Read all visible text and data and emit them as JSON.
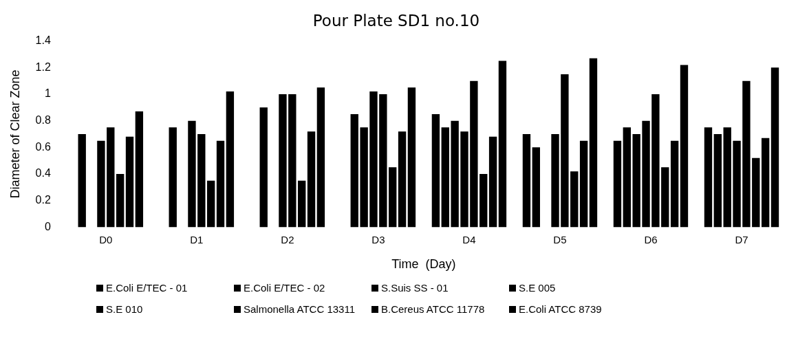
{
  "chart_data": {
    "type": "bar",
    "title": "Pour Plate SD1 no.10",
    "xlabel": "Time  (Day)",
    "ylabel": "Diameter of Clear Zone",
    "categories": [
      "D0",
      "D1",
      "D2",
      "D3",
      "D4",
      "D5",
      "D6",
      "D7"
    ],
    "series": [
      {
        "name": "E.Coli E/TEC - 01",
        "color": "#000000",
        "values": [
          null,
          null,
          null,
          null,
          0.85,
          0.7,
          0.65,
          0.75
        ]
      },
      {
        "name": "E.Coli E/TEC - 02",
        "color": "#000000",
        "values": [
          0.7,
          0.75,
          0.9,
          0.85,
          0.75,
          0.6,
          0.75,
          0.7
        ]
      },
      {
        "name": "S.Suis SS - 01",
        "color": "#000000",
        "values": [
          null,
          null,
          null,
          0.75,
          0.8,
          null,
          0.7,
          0.75
        ]
      },
      {
        "name": "S.E 005",
        "color": "#000000",
        "values": [
          0.65,
          0.8,
          1.0,
          1.02,
          0.72,
          0.7,
          0.8,
          0.65
        ]
      },
      {
        "name": "S.E 010",
        "color": "#000000",
        "values": [
          0.75,
          0.7,
          1.0,
          1.0,
          1.1,
          1.15,
          1.0,
          1.1
        ]
      },
      {
        "name": "Salmonella ATCC 13311",
        "color": "#000000",
        "values": [
          0.4,
          0.35,
          0.35,
          0.45,
          0.4,
          0.42,
          0.45,
          0.52
        ]
      },
      {
        "name": "B.Cereus ATCC 11778",
        "color": "#000000",
        "values": [
          0.68,
          0.65,
          0.72,
          0.72,
          0.68,
          0.65,
          0.65,
          0.67
        ]
      },
      {
        "name": "E.Coli ATCC 8739",
        "color": "#000000",
        "values": [
          0.87,
          1.02,
          1.05,
          1.05,
          1.25,
          1.27,
          1.22,
          1.2
        ]
      }
    ],
    "ylim": [
      0,
      1.4
    ],
    "yticks": [
      0,
      0.2,
      0.4,
      0.6,
      0.8,
      1,
      1.2,
      1.4
    ],
    "grid": false,
    "legend": "bottom"
  }
}
